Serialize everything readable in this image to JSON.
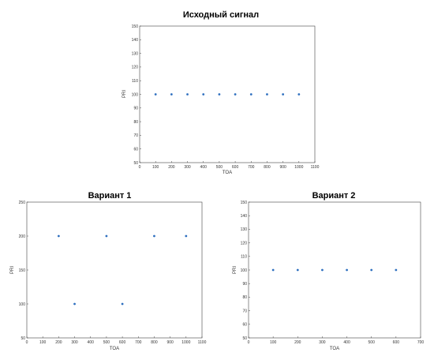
{
  "chart_data": [
    {
      "type": "scatter",
      "title": "Исходный сигнал",
      "xlabel": "TOA",
      "ylabel": "PRI",
      "xlim": [
        0,
        1100
      ],
      "ylim": [
        50,
        150
      ],
      "xticks": [
        0,
        100,
        200,
        300,
        400,
        500,
        600,
        700,
        800,
        900,
        1000,
        1100
      ],
      "yticks": [
        50,
        60,
        70,
        80,
        90,
        100,
        110,
        120,
        130,
        140,
        150
      ],
      "grid": false,
      "marker_color": "#2e6fbf",
      "x": [
        100,
        200,
        300,
        400,
        500,
        600,
        700,
        800,
        900,
        1000
      ],
      "y": [
        100,
        100,
        100,
        100,
        100,
        100,
        100,
        100,
        100,
        100
      ]
    },
    {
      "type": "scatter",
      "title": "Вариант 1",
      "xlabel": "TOA",
      "ylabel": "PRI",
      "xlim": [
        0,
        1100
      ],
      "ylim": [
        50,
        250
      ],
      "xticks": [
        0,
        100,
        200,
        300,
        400,
        500,
        600,
        700,
        800,
        900,
        1000,
        1100
      ],
      "yticks": [
        50,
        100,
        150,
        200,
        250
      ],
      "grid": false,
      "marker_color": "#2e6fbf",
      "x": [
        200,
        300,
        500,
        600,
        800,
        1000
      ],
      "y": [
        200,
        100,
        200,
        100,
        200,
        200
      ]
    },
    {
      "type": "scatter",
      "title": "Вариант 2",
      "xlabel": "TOA",
      "ylabel": "PRI",
      "xlim": [
        0,
        700
      ],
      "ylim": [
        50,
        150
      ],
      "xticks": [
        0,
        100,
        200,
        300,
        400,
        500,
        600,
        700
      ],
      "yticks": [
        50,
        60,
        70,
        80,
        90,
        100,
        110,
        120,
        130,
        140,
        150
      ],
      "grid": false,
      "marker_color": "#2e6fbf",
      "x": [
        100,
        200,
        300,
        400,
        500,
        600
      ],
      "y": [
        100,
        100,
        100,
        100,
        100,
        100
      ]
    }
  ]
}
